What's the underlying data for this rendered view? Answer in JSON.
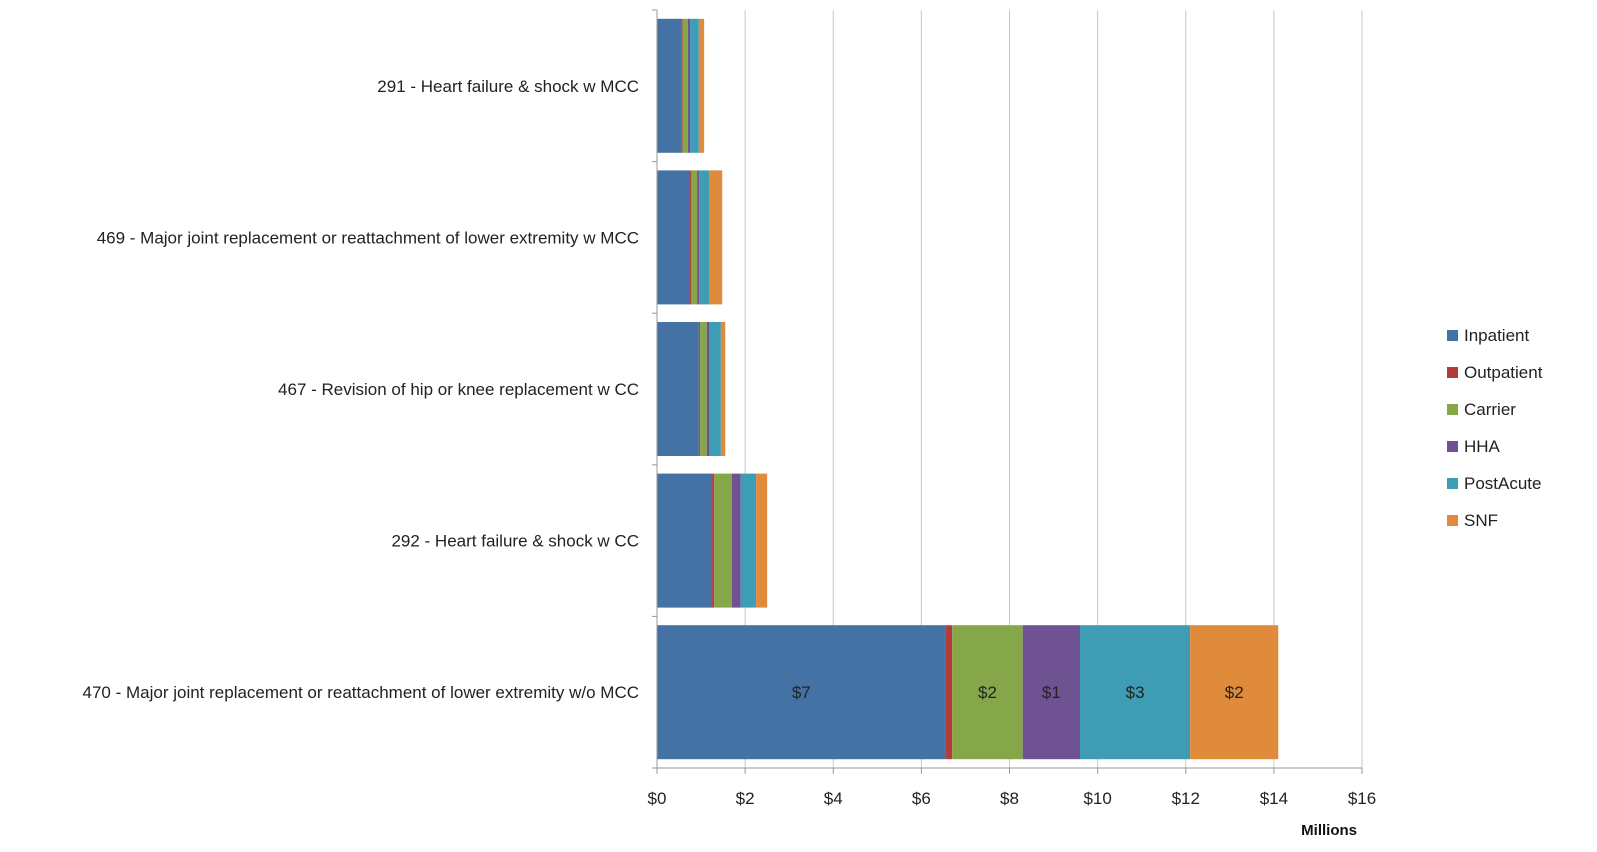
{
  "chart_data": {
    "type": "bar",
    "orientation": "horizontal",
    "stacked": true,
    "categories": [
      "291 - Heart failure & shock w MCC",
      "469 - Major joint replacement or reattachment of lower extremity w MCC",
      "467 - Revision of hip or knee replacement w CC",
      "292 - Heart failure & shock w CC",
      "470 - Major joint replacement or reattachment of lower extremity w/o MCC"
    ],
    "series": [
      {
        "name": "Inpatient",
        "color": "#4472A4",
        "values": [
          0.55,
          0.75,
          0.95,
          1.25,
          6.55
        ]
      },
      {
        "name": "Outpatient",
        "color": "#B23B3B",
        "values": [
          0.03,
          0.03,
          0.03,
          0.05,
          0.15
        ]
      },
      {
        "name": "Carrier",
        "color": "#86A64A",
        "values": [
          0.12,
          0.13,
          0.15,
          0.4,
          1.6
        ]
      },
      {
        "name": "HHA",
        "color": "#6F5291",
        "values": [
          0.05,
          0.05,
          0.05,
          0.2,
          1.3
        ]
      },
      {
        "name": "PostAcute",
        "color": "#3F9CB5",
        "values": [
          0.2,
          0.22,
          0.27,
          0.35,
          2.5
        ]
      },
      {
        "name": "SNF",
        "color": "#E08A3C",
        "values": [
          0.12,
          0.3,
          0.1,
          0.25,
          2.0
        ]
      }
    ],
    "data_labels": [
      {
        "category_index": 4,
        "series_index": 0,
        "text": "$7"
      },
      {
        "category_index": 4,
        "series_index": 2,
        "text": "$2"
      },
      {
        "category_index": 4,
        "series_index": 3,
        "text": "$1"
      },
      {
        "category_index": 4,
        "series_index": 4,
        "text": "$3"
      },
      {
        "category_index": 4,
        "series_index": 5,
        "text": "$2"
      }
    ],
    "x_ticks": [
      0,
      2,
      4,
      6,
      8,
      10,
      12,
      14,
      16
    ],
    "x_tick_labels": [
      "$0",
      "$2",
      "$4",
      "$6",
      "$8",
      "$10",
      "$12",
      "$14",
      "$16"
    ],
    "xlim": [
      0,
      16
    ],
    "xlabel": "Millions",
    "ylabel": "",
    "title": "",
    "grid": "vertical",
    "legend_position": "right"
  }
}
